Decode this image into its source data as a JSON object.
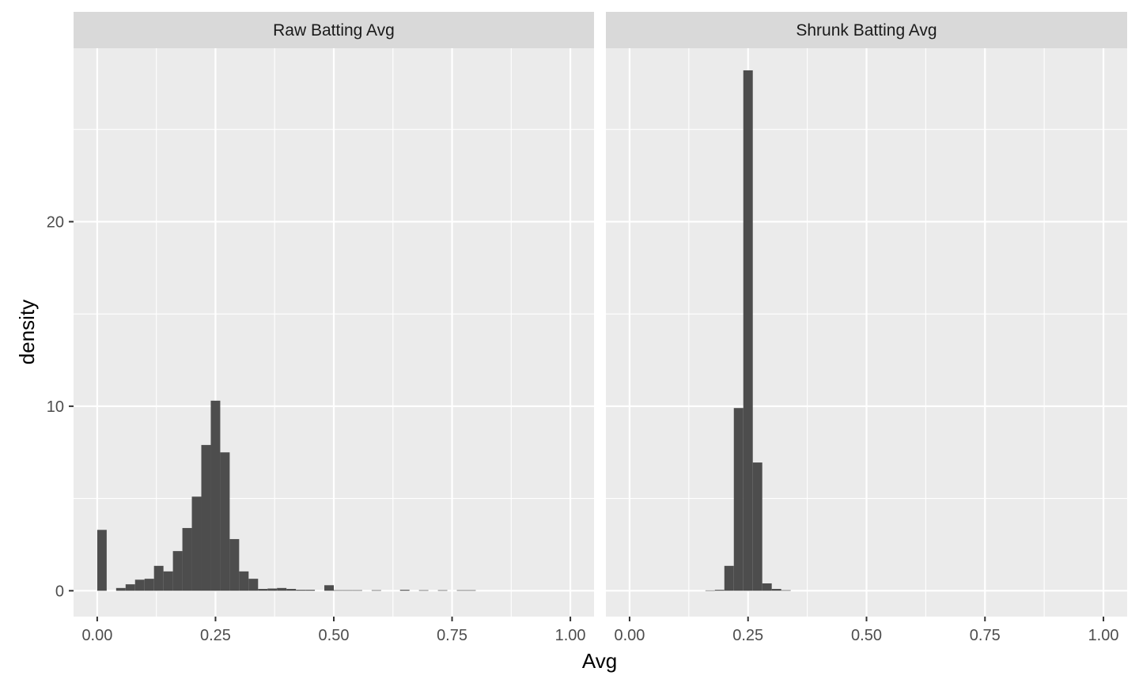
{
  "chart_data": {
    "type": "bar",
    "xlabel": "Avg",
    "ylabel": "density",
    "xlim": [
      -0.05,
      1.05
    ],
    "ylim": [
      -1.4,
      29.4
    ],
    "x_ticks": [
      0.0,
      0.25,
      0.5,
      0.75,
      1.0
    ],
    "x_tick_labels": [
      "0.00",
      "0.25",
      "0.50",
      "0.75",
      "1.00"
    ],
    "y_ticks": [
      0,
      10,
      20
    ],
    "y_tick_labels": [
      "0",
      "10",
      "20"
    ],
    "grid": true,
    "bin_width": 0.02,
    "panels": [
      {
        "name": "Raw Batting Avg",
        "bins": [
          {
            "x": 0.0,
            "density": 3.3
          },
          {
            "x": 0.02,
            "density": 0.0
          },
          {
            "x": 0.04,
            "density": 0.15
          },
          {
            "x": 0.06,
            "density": 0.35
          },
          {
            "x": 0.08,
            "density": 0.6
          },
          {
            "x": 0.1,
            "density": 0.65
          },
          {
            "x": 0.12,
            "density": 1.35
          },
          {
            "x": 0.14,
            "density": 1.05
          },
          {
            "x": 0.16,
            "density": 2.15
          },
          {
            "x": 0.18,
            "density": 3.4
          },
          {
            "x": 0.2,
            "density": 5.1
          },
          {
            "x": 0.22,
            "density": 7.9
          },
          {
            "x": 0.24,
            "density": 10.3
          },
          {
            "x": 0.26,
            "density": 7.5
          },
          {
            "x": 0.28,
            "density": 2.8
          },
          {
            "x": 0.3,
            "density": 1.05
          },
          {
            "x": 0.32,
            "density": 0.65
          },
          {
            "x": 0.34,
            "density": 0.1
          },
          {
            "x": 0.36,
            "density": 0.12
          },
          {
            "x": 0.38,
            "density": 0.15
          },
          {
            "x": 0.4,
            "density": 0.1
          },
          {
            "x": 0.42,
            "density": 0.05
          },
          {
            "x": 0.44,
            "density": 0.05
          },
          {
            "x": 0.46,
            "density": 0.0
          },
          {
            "x": 0.48,
            "density": 0.3
          },
          {
            "x": 0.5,
            "density": 0.03
          },
          {
            "x": 0.52,
            "density": 0.03
          },
          {
            "x": 0.54,
            "density": 0.03
          },
          {
            "x": 0.56,
            "density": 0.0
          },
          {
            "x": 0.58,
            "density": 0.03
          },
          {
            "x": 0.6,
            "density": 0.0
          },
          {
            "x": 0.62,
            "density": 0.0
          },
          {
            "x": 0.64,
            "density": 0.05
          },
          {
            "x": 0.66,
            "density": 0.0
          },
          {
            "x": 0.68,
            "density": 0.03
          },
          {
            "x": 0.7,
            "density": 0.0
          },
          {
            "x": 0.72,
            "density": 0.03
          },
          {
            "x": 0.74,
            "density": 0.0
          },
          {
            "x": 0.76,
            "density": 0.03
          },
          {
            "x": 0.78,
            "density": 0.03
          }
        ]
      },
      {
        "name": "Shrunk Batting Avg",
        "bins": [
          {
            "x": 0.16,
            "density": 0.02
          },
          {
            "x": 0.18,
            "density": 0.05
          },
          {
            "x": 0.2,
            "density": 1.35
          },
          {
            "x": 0.22,
            "density": 9.9
          },
          {
            "x": 0.24,
            "density": 28.2
          },
          {
            "x": 0.26,
            "density": 6.95
          },
          {
            "x": 0.28,
            "density": 0.4
          },
          {
            "x": 0.3,
            "density": 0.1
          },
          {
            "x": 0.32,
            "density": 0.03
          }
        ]
      }
    ]
  }
}
